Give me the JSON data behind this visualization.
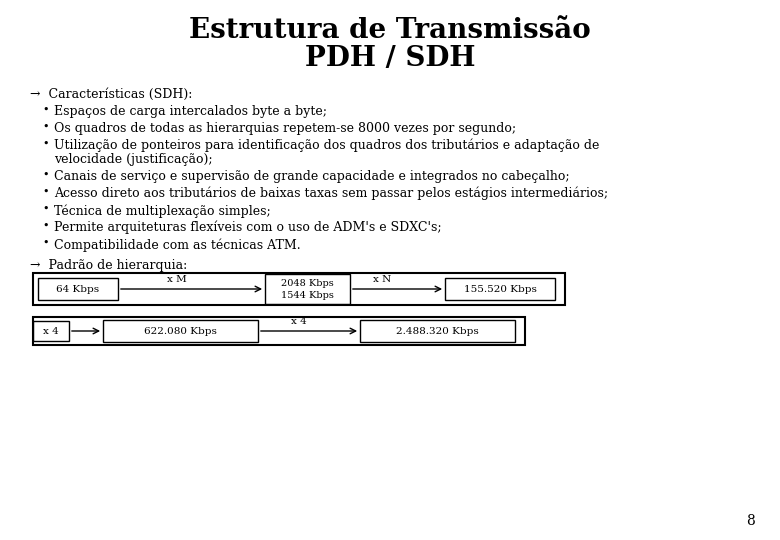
{
  "title_line1": "Estrutura de Transmissão",
  "title_line2": "PDH / SDH",
  "title_fontsize": 20,
  "body_fontsize": 9,
  "background_color": "#ffffff",
  "text_color": "#000000",
  "arrow_section": "→  Características (SDH):",
  "bullet_items": [
    "Espaços de carga intercalados byte a byte;",
    "Os quadros de todas as hierarquias repetem-se 8000 vezes por segundo;",
    "Utilização de ponteiros para identificação dos quadros dos tributários e adaptação de velocidade (justificação);",
    "Canais de serviço e supervisão de grande capacidade e integrados no cabeçalho;",
    "Acesso direto aos tributários de baixas taxas sem passar pelos estágios intermediários;",
    "Técnica de multiplexação simples;",
    "Permite arquiteturas flexíveis com o uso de ADM's e SDXC's;",
    "Compatibilidade com as técnicas ATM."
  ],
  "wrap_item_idx": 2,
  "wrap_line2": "velocidade (justificação);",
  "arrow_section2": "→  Padrão de hierarquia:",
  "diag_r1_box1": "64 Kbps",
  "diag_r1_lbl1": "x M",
  "diag_r1_box2a": "2048 Kbps",
  "diag_r1_box2b": "1544 Kbps",
  "diag_r1_lbl2": "x N",
  "diag_r1_box3": "155.520 Kbps",
  "diag_r2_lbl0": "x 4",
  "diag_r2_box1": "622.080 Kbps",
  "diag_r2_lbl1": "x 4",
  "diag_r2_box2": "2.488.320 Kbps",
  "page_number": "8"
}
